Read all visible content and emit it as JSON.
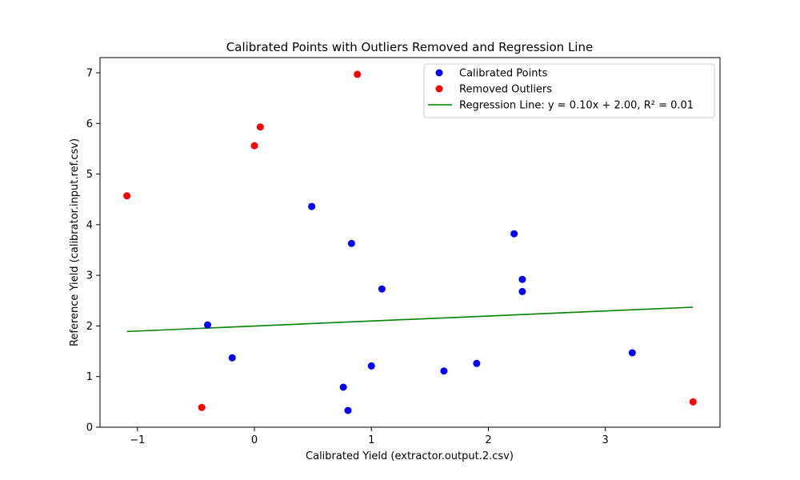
{
  "chart_data": {
    "type": "scatter",
    "title": "Calibrated Points with Outliers Removed and Regression Line",
    "xlabel": "Calibrated Yield (extractor.output.2.csv)",
    "ylabel": "Reference Yield (calibrator.input.ref.csv)",
    "xlim": [
      -1.32,
      3.98
    ],
    "ylim": [
      0,
      7.3
    ],
    "x_ticks": [
      -1,
      0,
      1,
      2,
      3
    ],
    "y_ticks": [
      0,
      1,
      2,
      3,
      4,
      5,
      6,
      7
    ],
    "grid": false,
    "legend_position": "top-right",
    "series": [
      {
        "name": "Calibrated Points",
        "kind": "scatter",
        "color": "#0000ff",
        "points": [
          [
            -0.4,
            2.02
          ],
          [
            -0.19,
            1.37
          ],
          [
            0.49,
            4.36
          ],
          [
            0.76,
            0.79
          ],
          [
            0.8,
            0.33
          ],
          [
            0.83,
            3.63
          ],
          [
            1.0,
            1.21
          ],
          [
            1.09,
            2.73
          ],
          [
            1.62,
            1.11
          ],
          [
            1.9,
            1.26
          ],
          [
            2.22,
            3.82
          ],
          [
            2.29,
            2.92
          ],
          [
            2.29,
            2.68
          ],
          [
            3.23,
            1.47
          ]
        ]
      },
      {
        "name": "Removed Outliers",
        "kind": "scatter",
        "color": "#ff0000",
        "points": [
          [
            -1.09,
            4.57
          ],
          [
            -0.45,
            0.39
          ],
          [
            0.0,
            5.56
          ],
          [
            0.05,
            5.93
          ],
          [
            0.88,
            6.97
          ],
          [
            3.75,
            0.5
          ]
        ]
      },
      {
        "name": "Regression Line: y = 0.10x + 2.00, R² = 0.01",
        "kind": "line",
        "color": "#008000",
        "points": [
          [
            -1.09,
            1.89
          ],
          [
            3.75,
            2.37
          ]
        ]
      }
    ]
  }
}
